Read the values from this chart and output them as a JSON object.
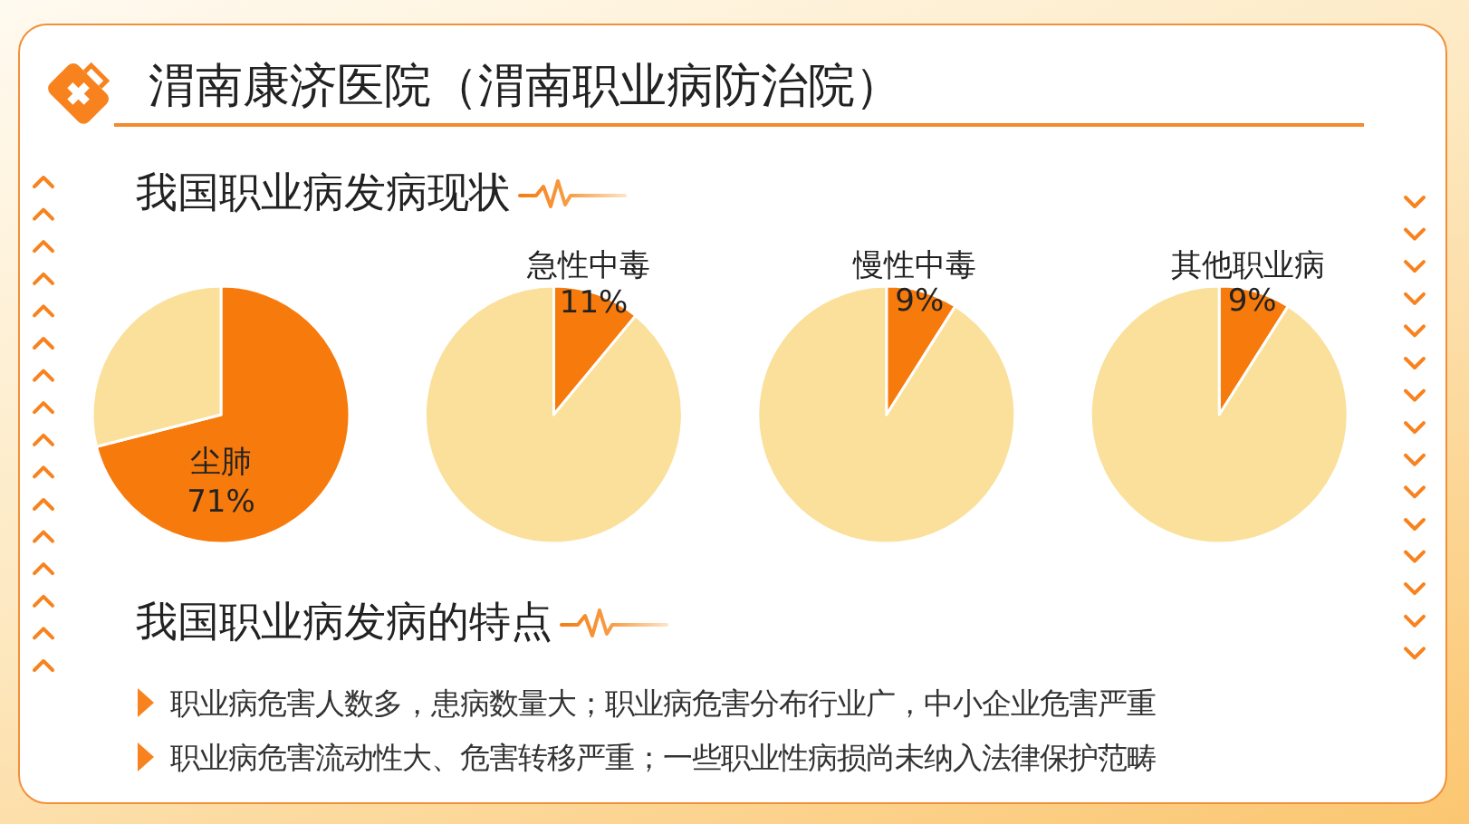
{
  "chart_data": [
    {
      "type": "other",
      "title": "渭南康济医院（渭南职业病防治院）",
      "subtitle": "我国职业病发病现状"
    },
    {
      "type": "pie",
      "categories": [
        "尘肺",
        null
      ],
      "values": [
        71,
        29
      ],
      "colors": [
        "#f77a0c",
        "#fae09b"
      ],
      "value_labels": [
        "71%",
        null
      ]
    },
    {
      "type": "pie",
      "categories": [
        "急性中毒",
        null
      ],
      "values": [
        11,
        89
      ],
      "colors": [
        "#f77a0c",
        "#fae09b"
      ],
      "value_labels": [
        "11%",
        null
      ]
    },
    {
      "type": "pie",
      "categories": [
        "慢性中毒",
        null
      ],
      "values": [
        9,
        91
      ],
      "colors": [
        "#f77a0c",
        "#fae09b"
      ],
      "value_labels": [
        "9%",
        null
      ]
    },
    {
      "type": "pie",
      "categories": [
        "其他职业病",
        null
      ],
      "values": [
        9,
        91
      ],
      "colors": [
        "#f77a0c",
        "#fae09b"
      ],
      "value_labels": [
        "9%",
        null
      ]
    },
    {
      "type": "other",
      "title": "我国职业病发病的特点",
      "annotations": [
        "职业病危害人数多，患病数量大；职业病危害分布行业广，中小企业危害严重",
        "职业病危害流动性大、危害转移严重；一些职业性病损尚未纳入法律保护范畴"
      ]
    }
  ]
}
